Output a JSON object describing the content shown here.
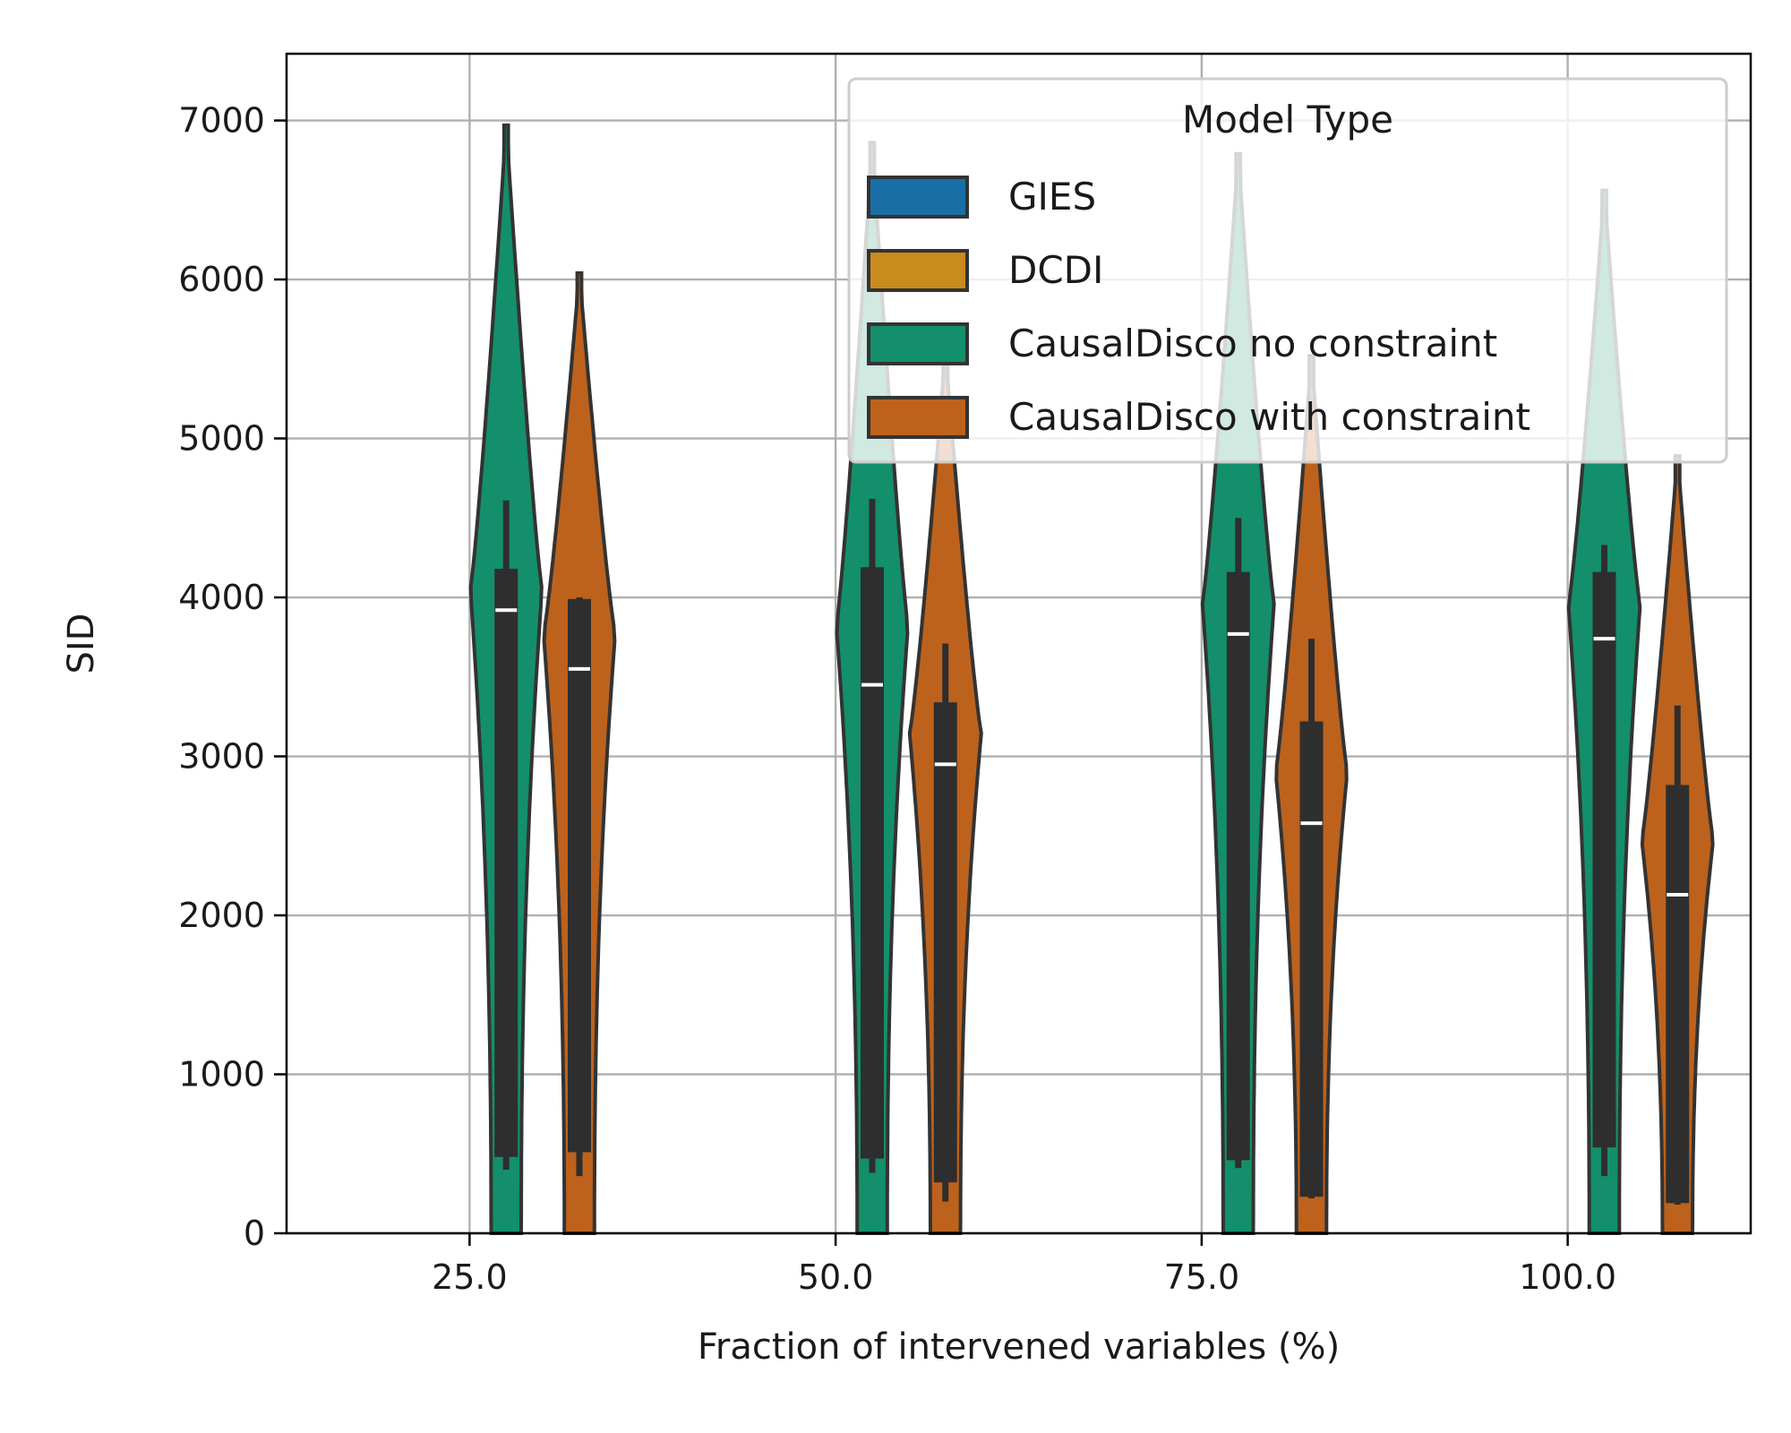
{
  "chart_data": {
    "type": "violin",
    "title": "",
    "xlabel": "Fraction of intervened variables (%)",
    "ylabel": "SID",
    "categories": [
      "25.0",
      "50.0",
      "75.0",
      "100.0"
    ],
    "x_values": [
      25,
      50,
      75,
      100
    ],
    "xlim": [
      12.5,
      112.5
    ],
    "ylim": [
      0,
      7420
    ],
    "yticks": [
      0,
      1000,
      2000,
      3000,
      4000,
      5000,
      6000,
      7000
    ],
    "grid": true,
    "legend": {
      "title": "Model Type",
      "placement": "top-right",
      "entries": [
        {
          "name": "GIES",
          "color": "#1a6fa6"
        },
        {
          "name": "DCDI",
          "color": "#c98a1e"
        },
        {
          "name": "CausalDisco no constraint",
          "color": "#148f6b"
        },
        {
          "name": "CausalDisco with constraint",
          "color": "#bd621c"
        }
      ]
    },
    "series": [
      {
        "name": "CausalDisco no constraint",
        "color": "#148f6b",
        "violins": [
          {
            "x": 25,
            "min": 400,
            "q1": 480,
            "median": 3920,
            "q3": 4180,
            "max": 4610,
            "top": 6970
          },
          {
            "x": 50,
            "min": 380,
            "q1": 470,
            "median": 3450,
            "q3": 4190,
            "max": 4620,
            "top": 6860
          },
          {
            "x": 75,
            "min": 410,
            "q1": 460,
            "median": 3770,
            "q3": 4160,
            "max": 4500,
            "top": 6790
          },
          {
            "x": 100,
            "min": 360,
            "q1": 540,
            "median": 3740,
            "q3": 4160,
            "max": 4330,
            "top": 6560
          }
        ]
      },
      {
        "name": "CausalDisco with constraint",
        "color": "#bd621c",
        "violins": [
          {
            "x": 25,
            "min": 360,
            "q1": 510,
            "median": 3550,
            "q3": 3990,
            "max": 4000,
            "top": 6040
          },
          {
            "x": 50,
            "min": 200,
            "q1": 320,
            "median": 2950,
            "q3": 3340,
            "max": 3710,
            "top": 5550
          },
          {
            "x": 75,
            "min": 220,
            "q1": 230,
            "median": 2580,
            "q3": 3220,
            "max": 3740,
            "top": 5520
          },
          {
            "x": 100,
            "min": 180,
            "q1": 190,
            "median": 2130,
            "q3": 2820,
            "max": 3320,
            "top": 4890
          }
        ]
      }
    ]
  }
}
